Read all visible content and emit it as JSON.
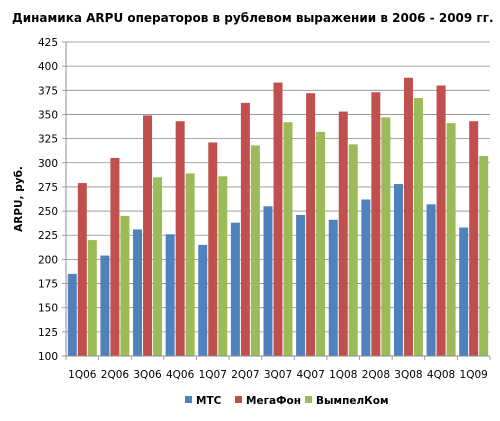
{
  "chart_data": {
    "type": "bar",
    "title": "Динамика ARPU операторов в рублевом выражении в 2006 - 2009 гг.",
    "xlabel": "",
    "ylabel": "ARPU, руб.",
    "ylim": [
      100,
      425
    ],
    "yticks": [
      100,
      125,
      150,
      175,
      200,
      225,
      250,
      275,
      300,
      325,
      350,
      375,
      400,
      425
    ],
    "grid": true,
    "legend_position": "bottom",
    "categories": [
      "1Q06",
      "2Q06",
      "3Q06",
      "4Q06",
      "1Q07",
      "2Q07",
      "3Q07",
      "4Q07",
      "1Q08",
      "2Q08",
      "3Q08",
      "4Q08",
      "1Q09"
    ],
    "series": [
      {
        "name": "МТС",
        "color": "#4f81bd",
        "values": [
          185,
          204,
          231,
          226,
          215,
          238,
          255,
          246,
          241,
          262,
          278,
          257,
          233
        ]
      },
      {
        "name": "МегаФон",
        "color": "#c0504d",
        "values": [
          279,
          305,
          349,
          343,
          321,
          362,
          383,
          372,
          353,
          373,
          388,
          380,
          343
        ]
      },
      {
        "name": "ВымпелКом",
        "color": "#9bbb59",
        "values": [
          220,
          245,
          285,
          289,
          286,
          318,
          342,
          332,
          319,
          347,
          367,
          341,
          307
        ]
      }
    ]
  }
}
